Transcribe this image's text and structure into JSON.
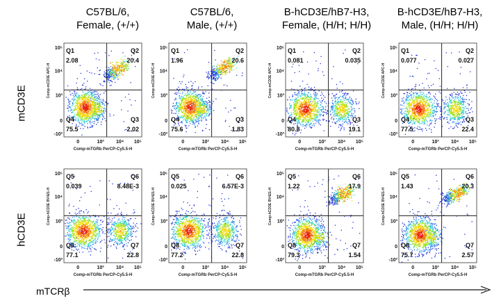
{
  "columns": [
    {
      "line1": "C57BL/6,",
      "line2": "Female,  (+/+)"
    },
    {
      "line1": "C57BL/6,",
      "line2": "Male,  (+/+)"
    },
    {
      "line1": "B-hCD3E/hB7-H3,",
      "line2": "Female, (H/H; H/H)"
    },
    {
      "line1": "B-hCD3E/hB7-H3,",
      "line2": "Male, (H/H; H/H)"
    }
  ],
  "rows": [
    "mCD3E",
    "hCD3E"
  ],
  "x_axis_title": "mTCRβ",
  "panel_xlabel": "Comp-mTGRb PerCP-Cy5.5-H",
  "panel_ylabels": [
    "Comp-mCD3E APC-H",
    "Comp-hCD3E BV421-H"
  ],
  "tick_labels": {
    "x": [
      "0",
      "10³",
      "10⁴",
      "10⁵"
    ],
    "y": [
      "-10³",
      "0",
      "10³",
      "10⁴",
      "10⁵"
    ]
  },
  "colors": {
    "density_low": "#1f2fd6",
    "density_mid": "#2fd3c8",
    "density_high": "#e81c0a",
    "gate_line": "#222222"
  },
  "chart_data": [
    {
      "type": "scatter",
      "title": "",
      "row": "mCD3E",
      "column": "C57BL/6, Female,  (+/+)",
      "quadrants": [
        {
          "name": "Q1",
          "value": "2.08"
        },
        {
          "name": "Q2",
          "value": "20.4"
        },
        {
          "name": "Q3",
          "value": "2.02"
        },
        {
          "name": "Q4",
          "value": "75.5"
        }
      ]
    },
    {
      "type": "scatter",
      "title": "",
      "row": "mCD3E",
      "column": "C57BL/6, Male,  (+/+)",
      "quadrants": [
        {
          "name": "Q1",
          "value": "1.96"
        },
        {
          "name": "Q2",
          "value": "20.6"
        },
        {
          "name": "Q3",
          "value": "1.83"
        },
        {
          "name": "Q4",
          "value": "75.6"
        }
      ]
    },
    {
      "type": "scatter",
      "title": "",
      "row": "mCD3E",
      "column": "B-hCD3E/hB7-H3, Female, (H/H; H/H)",
      "quadrants": [
        {
          "name": "Q1",
          "value": "0.081"
        },
        {
          "name": "Q2",
          "value": "0.035"
        },
        {
          "name": "Q3",
          "value": "19.1"
        },
        {
          "name": "Q4",
          "value": "80.8"
        }
      ]
    },
    {
      "type": "scatter",
      "title": "",
      "row": "mCD3E",
      "column": "B-hCD3E/hB7-H3, Male, (H/H; H/H)",
      "quadrants": [
        {
          "name": "Q1",
          "value": "0.077"
        },
        {
          "name": "Q2",
          "value": "0.027"
        },
        {
          "name": "Q3",
          "value": "22.4"
        },
        {
          "name": "Q4",
          "value": "77.5"
        }
      ]
    },
    {
      "type": "scatter",
      "title": "",
      "row": "hCD3E",
      "column": "C57BL/6, Female,  (+/+)",
      "quadrants": [
        {
          "name": "Q5",
          "value": "0.039"
        },
        {
          "name": "Q6",
          "value": "8.48E-3"
        },
        {
          "name": "Q7",
          "value": "22.8"
        },
        {
          "name": "Q8",
          "value": "77.1"
        }
      ]
    },
    {
      "type": "scatter",
      "title": "",
      "row": "hCD3E",
      "column": "C57BL/6, Male,  (+/+)",
      "quadrants": [
        {
          "name": "Q5",
          "value": "0.025"
        },
        {
          "name": "Q6",
          "value": "6.57E-3"
        },
        {
          "name": "Q7",
          "value": "22.8"
        },
        {
          "name": "Q8",
          "value": "77.2"
        }
      ]
    },
    {
      "type": "scatter",
      "title": "",
      "row": "hCD3E",
      "column": "B-hCD3E/hB7-H3, Female, (H/H; H/H)",
      "quadrants": [
        {
          "name": "Q5",
          "value": "1.22"
        },
        {
          "name": "Q6",
          "value": "17.9"
        },
        {
          "name": "Q7",
          "value": "1.54"
        },
        {
          "name": "Q8",
          "value": "79.3"
        }
      ]
    },
    {
      "type": "scatter",
      "title": "",
      "row": "hCD3E",
      "column": "B-hCD3E/hB7-H3, Male, (H/H; H/H)",
      "quadrants": [
        {
          "name": "Q5",
          "value": "1.43"
        },
        {
          "name": "Q6",
          "value": "20.3"
        },
        {
          "name": "Q7",
          "value": "2.57"
        },
        {
          "name": "Q8",
          "value": "75.7"
        }
      ]
    }
  ]
}
